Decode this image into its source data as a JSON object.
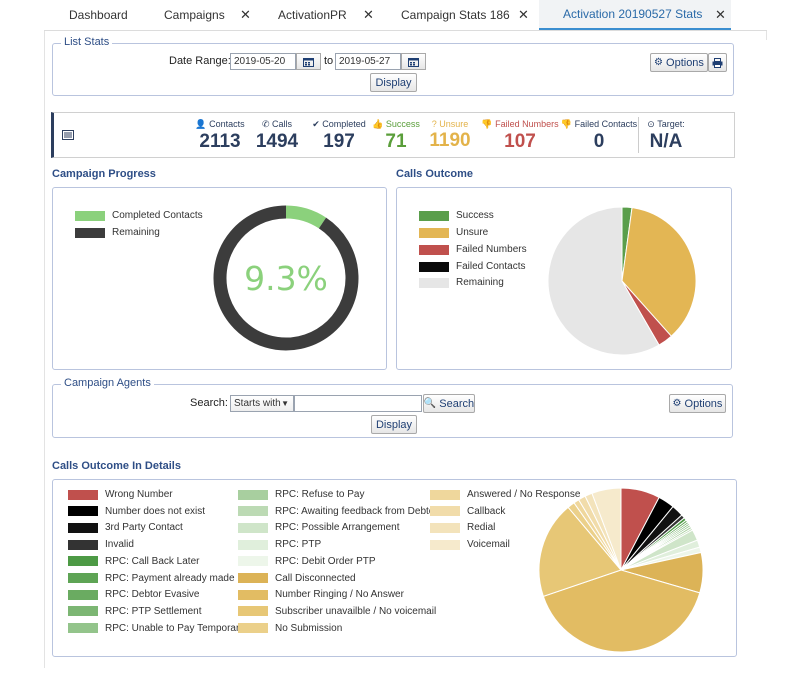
{
  "tabs": [
    {
      "label": "Dashboard",
      "closable": false,
      "active": false
    },
    {
      "label": "Campaigns",
      "closable": true,
      "active": false
    },
    {
      "label": "ActivationPR",
      "closable": true,
      "active": false
    },
    {
      "label": "Campaign Stats 186",
      "closable": true,
      "active": false
    },
    {
      "label": "Activation 20190527 Stats",
      "closable": true,
      "active": true
    }
  ],
  "list_stats": {
    "legend": "List Stats",
    "date_range_label": "Date Range:",
    "date_from": "2019-05-20",
    "to_label": "to",
    "date_to": "2019-05-27",
    "display_label": "Display",
    "options_label": "Options"
  },
  "stats": [
    {
      "label": "Contacts",
      "value": "2113",
      "color": "#2c3e5e",
      "icon": "user-icon"
    },
    {
      "label": "Calls",
      "value": "1494",
      "color": "#2c3e5e",
      "icon": "phone-icon"
    },
    {
      "label": "Completed",
      "value": "197",
      "color": "#2c3e5e",
      "icon": "check-icon"
    },
    {
      "label": "Success",
      "value": "71",
      "color": "#5a9e3a",
      "icon": "thumbs-up-icon"
    },
    {
      "label": "Unsure",
      "value": "1190",
      "color": "#e3b34a",
      "icon": "question-icon"
    },
    {
      "label": "Failed Numbers",
      "value": "107",
      "color": "#c0504d",
      "icon": "thumbs-down-icon"
    },
    {
      "label": "Failed Contacts",
      "value": "0",
      "color": "#2c3e5e",
      "icon": "thumbs-down-icon"
    },
    {
      "label": "Target:",
      "value": "N/A",
      "color": "#2c3e5e",
      "icon": "target-icon"
    }
  ],
  "campaign_progress": {
    "title": "Campaign Progress",
    "legend": [
      {
        "label": "Completed Contacts",
        "color": "#8bd17c"
      },
      {
        "label": "Remaining",
        "color": "#3c3c3c"
      }
    ],
    "percent_text": "9.3%",
    "fraction": 0.093
  },
  "calls_outcome": {
    "title": "Calls Outcome",
    "legend": [
      {
        "label": "Success",
        "color": "#5a9e4b"
      },
      {
        "label": "Unsure",
        "color": "#e3b654"
      },
      {
        "label": "Failed Numbers",
        "color": "#c0504d"
      },
      {
        "label": "Failed Contacts",
        "color": "#0a0a0a"
      },
      {
        "label": "Remaining",
        "color": "#e6e6e6"
      }
    ]
  },
  "campaign_agents": {
    "legend": "Campaign Agents",
    "search_label": "Search:",
    "mode_value": "Starts with",
    "search_button": "Search",
    "options_label": "Options",
    "display_label": "Display"
  },
  "calls_detail": {
    "title": "Calls Outcome In Details",
    "columns": [
      [
        {
          "label": "Wrong Number",
          "color": "#c0504d"
        },
        {
          "label": "Number does not exist",
          "color": "#000000"
        },
        {
          "label": "3rd Party Contact",
          "color": "#111111"
        },
        {
          "label": "Invalid",
          "color": "#333333"
        },
        {
          "label": "RPC: Call Back Later",
          "color": "#4d9a45"
        },
        {
          "label": "RPC: Payment already made",
          "color": "#5ea455"
        },
        {
          "label": "RPC: Debtor Evasive",
          "color": "#6aab61"
        },
        {
          "label": "RPC: PTP Settlement",
          "color": "#7cb673"
        },
        {
          "label": "RPC: Unable to Pay Temporary",
          "color": "#93c48b"
        }
      ],
      [
        {
          "label": "RPC: Refuse to Pay",
          "color": "#a8cf9f"
        },
        {
          "label": "RPC: Awaiting feedback from Debtor",
          "color": "#bcdab4"
        },
        {
          "label": "RPC: Possible Arrangement",
          "color": "#cfe5c9"
        },
        {
          "label": "RPC: PTP",
          "color": "#e0efdc"
        },
        {
          "label": "RPC: Debit Order PTP",
          "color": "#edf6ea"
        },
        {
          "label": "Call Disconnected",
          "color": "#dcb357"
        },
        {
          "label": "Number Ringing / No Answer",
          "color": "#e2bc63"
        },
        {
          "label": "Subscriber unavailble / No voicemail",
          "color": "#e7c776"
        },
        {
          "label": "No Submission",
          "color": "#ebd08a"
        }
      ],
      [
        {
          "label": "Answered / No Response",
          "color": "#efd79c"
        },
        {
          "label": "Callback",
          "color": "#f1dcaa"
        },
        {
          "label": "Redial",
          "color": "#f3e3bb"
        },
        {
          "label": "Voicemail",
          "color": "#f6eacc"
        }
      ]
    ]
  },
  "chart_data": [
    {
      "type": "pie",
      "title": "Campaign Progress",
      "labels": [
        "Completed Contacts",
        "Remaining"
      ],
      "values": [
        197,
        1916
      ],
      "colors": [
        "#8bd17c",
        "#3c3c3c"
      ],
      "center_text": "9.3%"
    },
    {
      "type": "pie",
      "title": "Calls Outcome",
      "labels": [
        "Success",
        "Unsure",
        "Failed Numbers",
        "Failed Contacts",
        "Remaining"
      ],
      "values": [
        71,
        1190,
        107,
        0,
        1916
      ],
      "colors": [
        "#5a9e4b",
        "#e3b654",
        "#c0504d",
        "#0a0a0a",
        "#e6e6e6"
      ]
    },
    {
      "type": "pie",
      "title": "Calls Outcome In Details",
      "labels": [
        "Wrong Number",
        "Number does not exist",
        "3rd Party Contact",
        "Invalid",
        "RPC: Call Back Later",
        "RPC: Payment already made",
        "RPC: Debtor Evasive",
        "RPC: PTP Settlement",
        "RPC: Unable to Pay Temporary",
        "RPC: Refuse to Pay",
        "RPC: Awaiting feedback from Debtor",
        "RPC: Possible Arrangement",
        "RPC: PTP",
        "RPC: Debit Order PTP",
        "Call Disconnected",
        "Number Ringing / No Answer",
        "Subscriber unavailble / No voicemail",
        "No Submission",
        "Answered / No Response",
        "Callback",
        "Redial",
        "Voicemail"
      ],
      "values": [
        107,
        45,
        33,
        10,
        8,
        6,
        5,
        5,
        5,
        6,
        5,
        30,
        20,
        15,
        110,
        560,
        265,
        20,
        15,
        20,
        20,
        80
      ],
      "colors": [
        "#c0504d",
        "#000000",
        "#111111",
        "#333333",
        "#4d9a45",
        "#5ea455",
        "#6aab61",
        "#7cb673",
        "#93c48b",
        "#a8cf9f",
        "#bcdab4",
        "#cfe5c9",
        "#e0efdc",
        "#edf6ea",
        "#dcb357",
        "#e2bc63",
        "#e7c776",
        "#ebd08a",
        "#efd79c",
        "#f1dcaa",
        "#f3e3bb",
        "#f6eacc"
      ]
    }
  ]
}
